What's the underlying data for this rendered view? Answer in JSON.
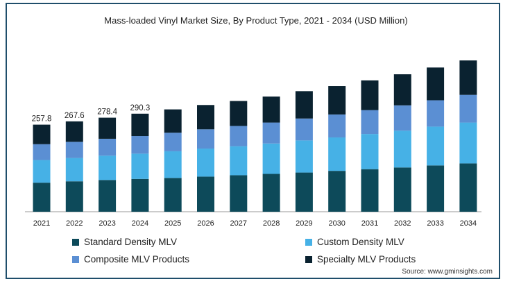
{
  "chart_data": {
    "type": "bar",
    "stacked": true,
    "title": "Mass-loaded Vinyl Market Size, By Product Type, 2021 - 2034 (USD Million)",
    "categories": [
      "2021",
      "2022",
      "2023",
      "2024",
      "2025",
      "2026",
      "2027",
      "2028",
      "2029",
      "2030",
      "2031",
      "2032",
      "2033",
      "2034"
    ],
    "total_labels": [
      "257.8",
      "267.6",
      "278.4",
      "290.3",
      "",
      "",
      "",
      "",
      "",
      "",
      "",
      "",
      "",
      ""
    ],
    "series": [
      {
        "name": "Standard Density MLV",
        "color": "#0d4a5a",
        "values": [
          86,
          90,
          94,
          97,
          100,
          104,
          108,
          112,
          116,
          121,
          126,
          131,
          137,
          143
        ]
      },
      {
        "name": "Custom Density MLV",
        "color": "#46b1e6",
        "values": [
          67,
          69,
          72,
          75,
          79,
          83,
          86,
          90,
          95,
          99,
          104,
          109,
          115,
          121
        ]
      },
      {
        "name": "Composite MLV Products",
        "color": "#5b8fd3",
        "values": [
          47,
          48,
          50,
          52,
          55,
          57,
          60,
          62,
          65,
          68,
          71,
          75,
          78,
          82
        ]
      },
      {
        "name": "Specialty MLV Products",
        "color": "#0a2230",
        "values": [
          57.8,
          60.6,
          62.4,
          66.3,
          69,
          72,
          74,
          77,
          81,
          84,
          88,
          92,
          97,
          102
        ]
      }
    ],
    "ylim": [
      0,
      500
    ],
    "grid": false,
    "legend_position": "bottom"
  },
  "source": "Source: www.gminsights.com"
}
